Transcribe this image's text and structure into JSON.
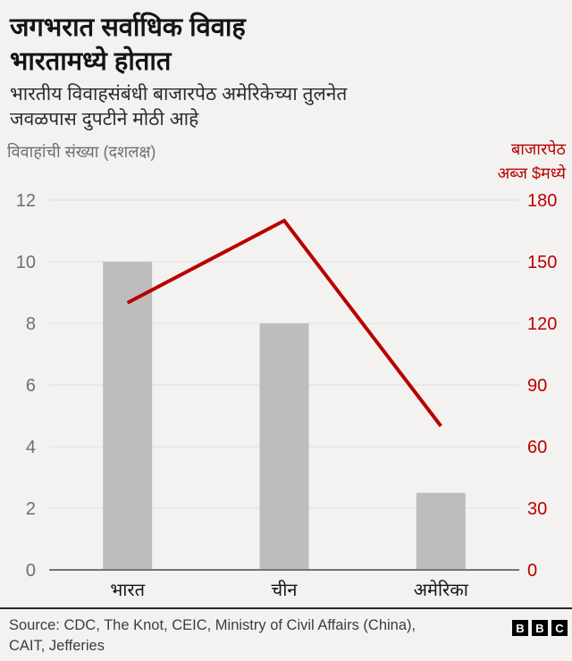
{
  "header": {
    "title_lines": [
      "जगभरात सर्वाधिक विवाह",
      "भारतामध्ये होतात"
    ],
    "subtitle_lines": [
      "भारतीय विवाहसंबंधी बाजारपेठ अमेरिकेच्या तुलनेत",
      "जवळपास दुपटीने मोठी आहे"
    ]
  },
  "axis_headers": {
    "left_label": "विवाहांची संख्या (दशलक्ष)",
    "right_label_lines": [
      "बाजारपेठ",
      "अब्ज $मध्ये"
    ]
  },
  "chart_data": {
    "type": "bar",
    "categories": [
      "भारत",
      "चीन",
      "अमेरिका"
    ],
    "series": [
      {
        "name": "विवाहांची संख्या (दशलक्ष)",
        "kind": "bar",
        "axis": "left",
        "values": [
          10,
          8,
          2.5
        ],
        "color": "#bdbdbd"
      },
      {
        "name": "बाजारपेठ अब्ज $मध्ये",
        "kind": "line",
        "axis": "right",
        "values": [
          130,
          170,
          70
        ],
        "color": "#b80000"
      }
    ],
    "left_axis": {
      "label": "विवाहांची संख्या (दशलक्ष)",
      "ticks": [
        0,
        2,
        4,
        6,
        8,
        10,
        12
      ],
      "range": [
        0,
        12
      ]
    },
    "right_axis": {
      "label": "बाजारपेठ अब्ज $मध्ये",
      "ticks": [
        0,
        30,
        60,
        90,
        120,
        150,
        180
      ],
      "range": [
        0,
        180
      ]
    },
    "grid": true,
    "legend": "none",
    "title": "जगभरात सर्वाधिक विवाह भारतामध्ये होतात",
    "subtitle": "भारतीय विवाहसंबंधी बाजारपेठ अमेरिकेच्या तुलनेत जवळपास दुपटीने मोठी आहे"
  },
  "colors": {
    "background": "#f3f2f0",
    "bar": "#bdbdbd",
    "line": "#b80000",
    "gridline": "#dfdedc",
    "baseline": "#757575",
    "left_tick_text": "#6f6f6f",
    "right_tick_text": "#b80000"
  },
  "footer": {
    "source_lines": [
      "Source: CDC, The Knot, CEIC, Ministry of Civil Affairs (China),",
      "CAIT, Jefferies"
    ],
    "bbc_letters": [
      "B",
      "B",
      "C"
    ]
  }
}
